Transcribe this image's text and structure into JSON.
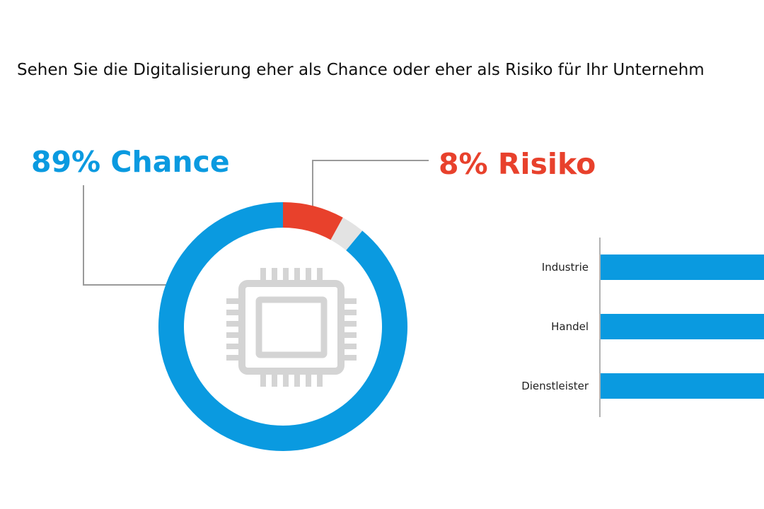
{
  "chart_data": [
    {
      "type": "pie",
      "title": "Sehen Sie die Digitalisierung eher als Chance oder eher als Risiko für Ihr Unternehm",
      "slices": [
        {
          "label": "Chance",
          "value": 89,
          "color": "#0a9ae0",
          "text": "89% Chance"
        },
        {
          "label": "Risiko",
          "value": 8,
          "color": "#e8412c",
          "text": "8% Risiko"
        },
        {
          "label": "",
          "value": 3,
          "color": "#e3e3e3",
          "text": ""
        }
      ],
      "center_icon": "cpu-chip-icon"
    },
    {
      "type": "bar",
      "orientation": "horizontal",
      "categories": [
        "Industrie",
        "Handel",
        "Dienstleister"
      ],
      "bar_color": "#0a9ae0",
      "note": "bars are cut off at the right edge; values not visible"
    }
  ]
}
